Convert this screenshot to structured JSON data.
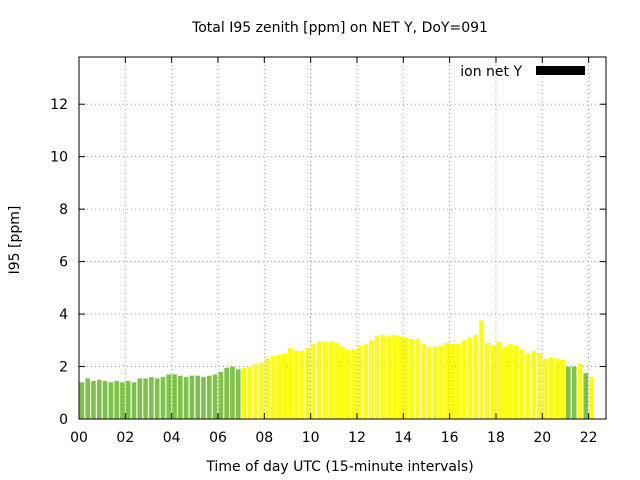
{
  "chart_data": {
    "type": "bar",
    "title": "Total I95 zenith [ppm] on NET Y, DoY=091",
    "xlabel": "Time of day UTC (15-minute intervals)",
    "ylabel": "I95 [ppm]",
    "legend": {
      "label": "ion net Y",
      "color": "#000000",
      "placement": "top-right"
    },
    "xlim": [
      0,
      22.75
    ],
    "ylim": [
      0,
      13.8
    ],
    "xticks": [
      "00",
      "02",
      "04",
      "06",
      "08",
      "10",
      "12",
      "14",
      "16",
      "18",
      "20",
      "22"
    ],
    "xtick_values": [
      0,
      2,
      4,
      6,
      8,
      10,
      12,
      14,
      16,
      18,
      20,
      22
    ],
    "yticks": [
      "0",
      "2",
      "4",
      "6",
      "8",
      "10",
      "12"
    ],
    "ytick_values": [
      0,
      2,
      4,
      6,
      8,
      10,
      12
    ],
    "grid": true,
    "interval_hours": 0.25,
    "colors": {
      "green": "#7ec24a",
      "yellow": "#ffff00"
    },
    "series": [
      {
        "values": [
          1.4,
          1.55,
          1.45,
          1.5,
          1.45,
          1.4,
          1.45,
          1.4,
          1.45,
          1.4,
          1.55,
          1.55,
          1.6,
          1.55,
          1.6,
          1.7,
          1.7,
          1.65,
          1.6,
          1.65,
          1.65,
          1.6,
          1.65,
          1.7,
          1.8,
          1.95,
          2.0,
          1.9,
          1.95,
          2.0,
          2.1,
          2.15,
          2.3,
          2.4,
          2.45,
          2.5,
          2.7,
          2.6,
          2.6,
          2.7,
          2.85,
          2.95,
          2.95,
          2.95,
          2.9,
          2.75,
          2.65,
          2.65,
          2.8,
          2.85,
          3.0,
          3.15,
          3.2,
          3.15,
          3.2,
          3.15,
          3.1,
          3.05,
          3.05,
          2.85,
          2.75,
          2.75,
          2.8,
          2.9,
          2.85,
          2.85,
          3.0,
          3.1,
          3.2,
          3.75,
          2.9,
          2.8,
          2.95,
          2.75,
          2.85,
          2.8,
          2.65,
          2.5,
          2.6,
          2.5,
          2.3,
          2.35,
          2.3,
          2.25,
          2.0,
          2.0,
          2.1,
          1.75,
          1.6
        ],
        "colors": [
          "green",
          "green",
          "green",
          "green",
          "green",
          "green",
          "green",
          "green",
          "green",
          "green",
          "green",
          "green",
          "green",
          "green",
          "green",
          "green",
          "green",
          "green",
          "green",
          "green",
          "green",
          "green",
          "green",
          "green",
          "green",
          "green",
          "green",
          "green",
          "yellow",
          "yellow",
          "yellow",
          "yellow",
          "yellow",
          "yellow",
          "yellow",
          "yellow",
          "yellow",
          "yellow",
          "yellow",
          "yellow",
          "yellow",
          "yellow",
          "yellow",
          "yellow",
          "yellow",
          "yellow",
          "yellow",
          "yellow",
          "yellow",
          "yellow",
          "yellow",
          "yellow",
          "yellow",
          "yellow",
          "yellow",
          "yellow",
          "yellow",
          "yellow",
          "yellow",
          "yellow",
          "yellow",
          "yellow",
          "yellow",
          "yellow",
          "yellow",
          "yellow",
          "yellow",
          "yellow",
          "yellow",
          "yellow",
          "yellow",
          "yellow",
          "yellow",
          "yellow",
          "yellow",
          "yellow",
          "yellow",
          "yellow",
          "yellow",
          "yellow",
          "yellow",
          "yellow",
          "yellow",
          "yellow",
          "green",
          "green",
          "yellow",
          "green",
          "yellow"
        ]
      }
    ]
  }
}
